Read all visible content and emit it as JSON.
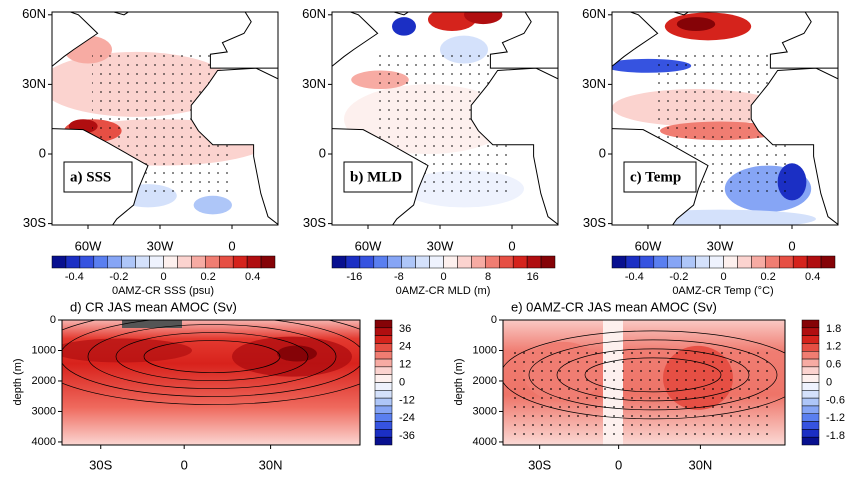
{
  "maps": [
    {
      "label": "a) SSS",
      "colorbar_title": "0AMZ-CR SSS (psu)",
      "colorbar_range": [
        -0.5,
        0.5
      ],
      "colorbar_ticks": [
        -0.4,
        -0.2,
        0,
        0.2,
        0.4
      ]
    },
    {
      "label": "b) MLD",
      "colorbar_title": "0AMZ-CR MLD (m)",
      "colorbar_range": [
        -20,
        20
      ],
      "colorbar_ticks": [
        -16,
        -8,
        0,
        8,
        16
      ]
    },
    {
      "label": "c) Temp",
      "colorbar_title": "0AMZ-CR Temp (°C)",
      "colorbar_range": [
        -0.5,
        0.5
      ],
      "colorbar_ticks": [
        -0.4,
        -0.2,
        0,
        0.2,
        0.4
      ]
    }
  ],
  "map_lat_labels": [
    "60N",
    "30N",
    "0",
    "30S"
  ],
  "map_lon_labels": [
    "60W",
    "30W",
    "0"
  ],
  "sections": [
    {
      "title": "d) CR JAS mean AMOC (Sv)",
      "colorbar_range": [
        -42,
        42
      ],
      "colorbar_ticks": [
        36,
        24,
        12,
        0,
        -12,
        -24,
        -36
      ]
    },
    {
      "title": "e) 0AMZ-CR JAS mean AMOC (Sv)",
      "colorbar_range": [
        -2.1,
        2.1
      ],
      "colorbar_ticks": [
        1.8,
        1.2,
        0.6,
        0,
        -0.6,
        -1.2,
        -1.8
      ]
    }
  ],
  "section_ylabel": "depth (m)",
  "section_ylim": [
    0,
    4100
  ],
  "section_yticks": [
    0,
    1000,
    2000,
    3000,
    4000
  ],
  "section_x_labels": [
    "30S",
    "0",
    "30N"
  ]
}
